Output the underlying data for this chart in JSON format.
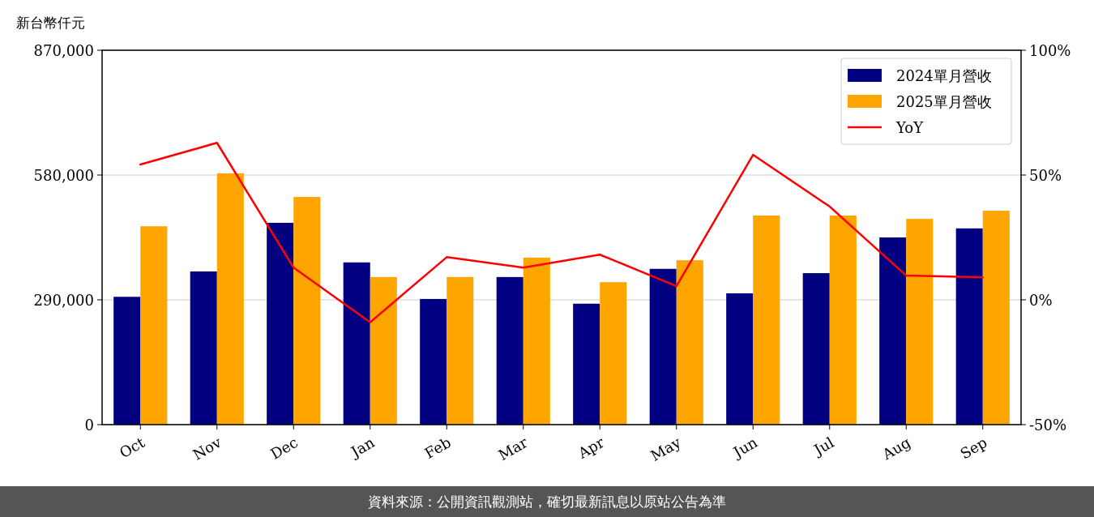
{
  "chart_data": {
    "type": "bar",
    "ylabel": "新台幣仟元",
    "categories": [
      "Oct",
      "Nov",
      "Dec",
      "Jan",
      "Feb",
      "Mar",
      "Apr",
      "May",
      "Jun",
      "Jul",
      "Aug",
      "Sep"
    ],
    "series": [
      {
        "name": "2024單月營收",
        "color": "#000080",
        "values": [
          297000,
          356000,
          469000,
          377000,
          292000,
          343000,
          281000,
          362000,
          305000,
          352000,
          435000,
          456000
        ]
      },
      {
        "name": "2025單月營收",
        "color": "#ffa500",
        "values": [
          461000,
          584000,
          529000,
          343000,
          343000,
          388000,
          331000,
          382000,
          486000,
          486000,
          478000,
          497000
        ]
      },
      {
        "name": "YoY",
        "type": "line",
        "axis": "y2",
        "color": "#ff0000",
        "values": [
          54.2,
          62.9,
          12.9,
          -9.0,
          17.1,
          12.9,
          18.1,
          5.5,
          58.1,
          37.4,
          9.7,
          9.0
        ]
      }
    ],
    "ylim": [
      0,
      870000
    ],
    "yticks": [
      {
        "value": 0,
        "label": "0"
      },
      {
        "value": 290000,
        "label": "290,000"
      },
      {
        "value": 580000,
        "label": "580,000"
      },
      {
        "value": 870000,
        "label": "870,000"
      }
    ],
    "y2lim": [
      -50,
      100
    ],
    "y2ticks": [
      {
        "value": -50,
        "label": "-50%"
      },
      {
        "value": 0,
        "label": "0%"
      },
      {
        "value": 50,
        "label": "50%"
      },
      {
        "value": 100,
        "label": "100%"
      }
    ],
    "grid": "y",
    "legend": "top right",
    "annotations": [
      "資料來源：公開資訊觀測站，確切最新訊息以原站公告為準"
    ]
  }
}
